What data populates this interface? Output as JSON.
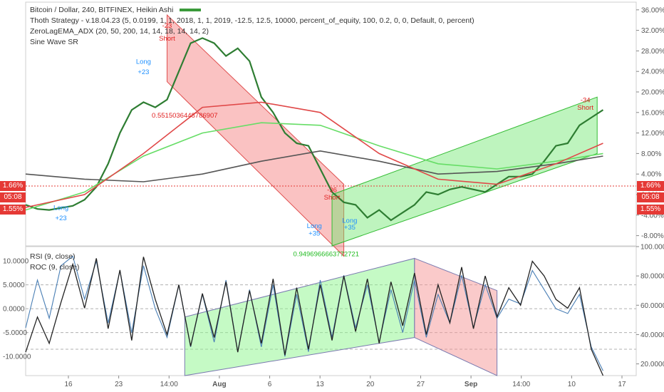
{
  "chart_data": [
    {
      "type": "line",
      "title": "Bitcoin / Dollar, 240, BITFINEX, Heikin Ashi",
      "indicators": [
        "Thoth Strategy - v.18.04.23 (5, 0.0199, 1, 1, 2018, 1, 1, 2019, -12.5, 12.5, 10000, percent_of_equity, 100, 0.2, 0, 0, Default, 0, percent)",
        "ZeroLagEMA_ADX (20, 50, 200, 14, 14, 18, 14, 14, 2)",
        "Sine Wave SR"
      ],
      "y_ticks": [
        "36.00%",
        "32.00%",
        "28.00%",
        "24.00%",
        "20.00%",
        "16.00%",
        "12.00%",
        "8.00%",
        "4.00%",
        "0.00%",
        "-4.00%",
        "-8.00%"
      ],
      "ylim": [
        -10,
        37.5
      ],
      "x_ticks": [
        "16",
        "23",
        "14:00",
        "Aug",
        "6",
        "13",
        "20",
        "27",
        "Sep",
        "14:00",
        "10",
        "17"
      ],
      "price_tags": {
        "current": "1.66%",
        "countdown": "05:08",
        "other": "1.55%"
      },
      "series": [
        {
          "name": "price",
          "color": "#2e7d32",
          "x": [
            0,
            2,
            4,
            6,
            8,
            10,
            12,
            14,
            16,
            18,
            20,
            22,
            24,
            26,
            28,
            30,
            32,
            34,
            36,
            38,
            40,
            42,
            44,
            46,
            48,
            50,
            52,
            54,
            56,
            58,
            60,
            62,
            64,
            66,
            68,
            70,
            72,
            74,
            76,
            78,
            80,
            82,
            84,
            86,
            88,
            90,
            92,
            94,
            96,
            98
          ],
          "values": [
            -2.0,
            -2.8,
            -3.0,
            -2.6,
            -2.2,
            -1.0,
            1.5,
            6.0,
            12.0,
            16.5,
            18.0,
            17.0,
            18.5,
            24.0,
            29.5,
            30.5,
            29.5,
            27.0,
            28.5,
            26.0,
            19.0,
            16.0,
            12.0,
            10.0,
            9.5,
            5.0,
            0.5,
            -1.5,
            -2.0,
            -4.5,
            -3.0,
            -5.0,
            -3.5,
            -2.0,
            0.5,
            0.0,
            1.0,
            1.5,
            1.0,
            0.5,
            2.0,
            3.5,
            3.5,
            4.0,
            6.5,
            9.5,
            10.0,
            13.5,
            15.0,
            16.5
          ]
        },
        {
          "name": "ema-slow",
          "color": "#555555",
          "x": [
            0,
            10,
            20,
            30,
            40,
            50,
            60,
            70,
            80,
            90,
            98
          ],
          "values": [
            4.0,
            3.0,
            2.5,
            4.0,
            6.5,
            8.5,
            6.5,
            4.0,
            4.5,
            6.0,
            7.5
          ]
        },
        {
          "name": "ema-long",
          "color": "#66dd66",
          "x": [
            0,
            10,
            20,
            30,
            40,
            50,
            60,
            70,
            80,
            90,
            98
          ],
          "values": [
            -3.0,
            0.5,
            7.5,
            12.0,
            14.0,
            13.5,
            9.5,
            6.0,
            5.0,
            6.5,
            8.0
          ]
        },
        {
          "name": "ema-mid",
          "color": "#e04848",
          "x": [
            0,
            10,
            20,
            30,
            40,
            50,
            60,
            70,
            80,
            90,
            98
          ],
          "values": [
            -2.5,
            0.0,
            8.0,
            17.0,
            18.0,
            16.0,
            8.0,
            3.0,
            2.0,
            6.0,
            10.0
          ]
        }
      ],
      "annotations": [
        {
          "text": "-23",
          "color": "#e02020",
          "x": 24,
          "y": 32.5
        },
        {
          "text": "Short",
          "color": "#e02020",
          "x": 24,
          "y": 30.0
        },
        {
          "text": "Long",
          "color": "#1e90ff",
          "x": 20,
          "y": 25.5
        },
        {
          "text": "+23",
          "color": "#1e90ff",
          "x": 20,
          "y": 23.5
        },
        {
          "text": "Long",
          "color": "#1e90ff",
          "x": 6,
          "y": -3.0
        },
        {
          "text": "+23",
          "color": "#1e90ff",
          "x": 6,
          "y": -5.0
        },
        {
          "text": "0.5515036448786907",
          "color": "#e02020",
          "x": 27,
          "y": 15.0
        },
        {
          "text": "-36",
          "color": "#e02020",
          "x": 52,
          "y": 0.5
        },
        {
          "text": "Short",
          "color": "#e02020",
          "x": 52,
          "y": -1.0
        },
        {
          "text": "Long",
          "color": "#1e90ff",
          "x": 49,
          "y": -6.5
        },
        {
          "text": "+35",
          "color": "#1e90ff",
          "x": 49,
          "y": -8.0
        },
        {
          "text": "Long",
          "color": "#1e90ff",
          "x": 55,
          "y": -5.5
        },
        {
          "text": "+35",
          "color": "#1e90ff",
          "x": 55,
          "y": -6.8
        },
        {
          "text": "0.9496966663772721",
          "color": "#22bb22",
          "x": 51,
          "y": -12.0
        },
        {
          "text": "-34",
          "color": "#e02020",
          "x": 95,
          "y": 18.0
        },
        {
          "text": "Short",
          "color": "#e02020",
          "x": 95,
          "y": 16.5
        }
      ]
    },
    {
      "type": "line",
      "indicators": [
        "RSI (9, close)",
        "ROC (9, close)"
      ],
      "left_ticks": [
        "10.0000",
        "5.0000",
        "0.0000",
        "-5.0000",
        "-10.0000"
      ],
      "left_lim": [
        -14,
        13
      ],
      "right_ticks": [
        "100.0000",
        "80.0000",
        "60.0000",
        "40.0000",
        "20.0000"
      ],
      "right_lim": [
        12,
        100
      ],
      "series": [
        {
          "name": "RSI",
          "color": "#222222",
          "x": [
            0,
            2,
            4,
            6,
            8,
            10,
            12,
            14,
            16,
            18,
            20,
            22,
            24,
            26,
            28,
            30,
            32,
            34,
            36,
            38,
            40,
            42,
            44,
            46,
            48,
            50,
            52,
            54,
            56,
            58,
            60,
            62,
            64,
            66,
            68,
            70,
            72,
            74,
            76,
            78,
            80,
            82,
            84,
            86,
            88,
            90,
            92,
            94,
            96,
            98
          ],
          "values": [
            28,
            52,
            34,
            62,
            88,
            58,
            92,
            44,
            84,
            36,
            93,
            64,
            40,
            74,
            32,
            68,
            38,
            76,
            28,
            70,
            34,
            78,
            26,
            72,
            30,
            74,
            36,
            80,
            42,
            78,
            34,
            76,
            46,
            82,
            40,
            74,
            48,
            86,
            44,
            80,
            52,
            72,
            60,
            90,
            80,
            64,
            58,
            72,
            30,
            12
          ]
        },
        {
          "name": "ROC",
          "color": "#4a7fb5",
          "x": [
            0,
            2,
            4,
            6,
            8,
            10,
            12,
            14,
            16,
            18,
            20,
            22,
            24,
            26,
            28,
            30,
            32,
            34,
            36,
            38,
            40,
            42,
            44,
            46,
            48,
            50,
            52,
            54,
            56,
            58,
            60,
            62,
            64,
            66,
            68,
            70,
            72,
            74,
            76,
            78,
            80,
            82,
            84,
            86,
            88,
            90,
            92,
            94,
            96,
            98
          ],
          "values": [
            -4,
            6,
            -2,
            9,
            11,
            2,
            10,
            -3,
            8,
            -5,
            9,
            0,
            -6,
            5,
            -8,
            3,
            -7,
            6,
            -9,
            4,
            -8,
            5,
            -10,
            3,
            -9,
            6,
            -6,
            7,
            -4,
            5,
            -7,
            4,
            -5,
            6,
            -6,
            3,
            -3,
            7,
            -4,
            5,
            -2,
            2,
            1,
            8,
            4,
            0,
            -1,
            3,
            -8,
            -13
          ]
        }
      ]
    }
  ]
}
